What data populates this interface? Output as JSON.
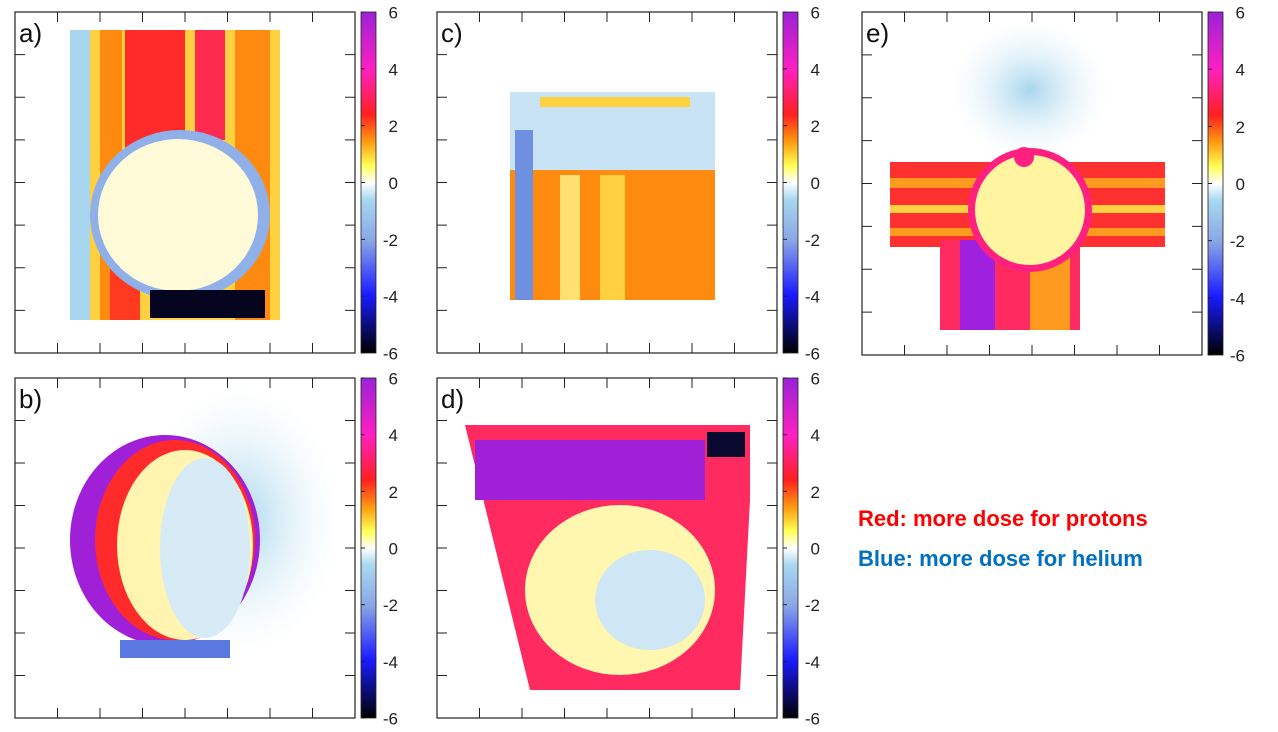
{
  "panels": [
    {
      "label": "a)"
    },
    {
      "label": "b)"
    },
    {
      "label": "c)"
    },
    {
      "label": "d)"
    },
    {
      "label": "e)"
    }
  ],
  "colorbar": {
    "lim": [
      -6,
      6
    ],
    "ticks": [
      6,
      4,
      2,
      0,
      -2,
      -4,
      -6
    ]
  },
  "legend": {
    "red": "Red: more dose for protons",
    "blue": "Blue: more dose for helium"
  }
}
